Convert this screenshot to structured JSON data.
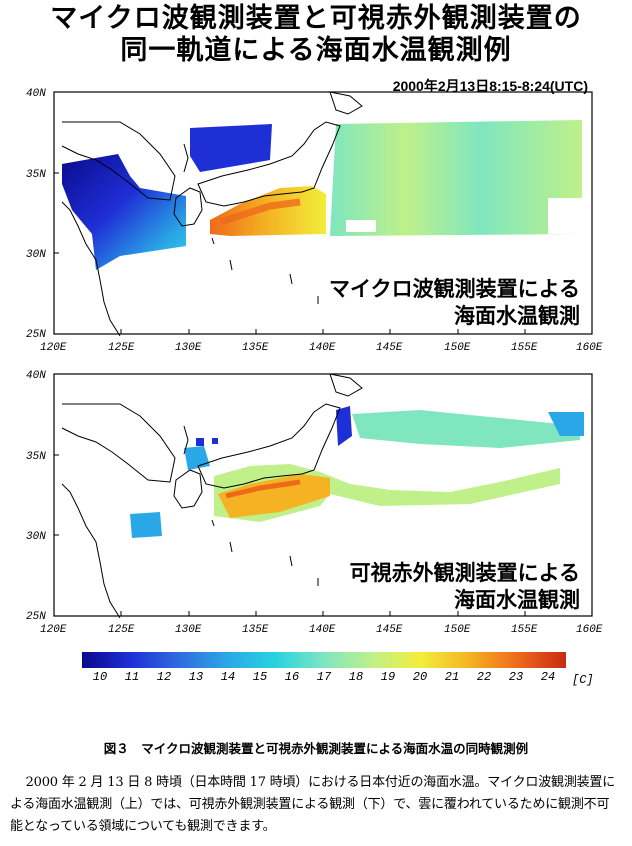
{
  "title_line1": "マイクロ波観測装置と可視赤外観測装置の",
  "title_line2": "同一軌道による海面水温観測例",
  "datetime": "2000年2月13日8:15-8:24(UTC)",
  "maps": {
    "lat_labels": [
      "40N",
      "35N",
      "30N",
      "25N"
    ],
    "lon_labels": [
      "120E",
      "125E",
      "130E",
      "135E",
      "140E",
      "145E",
      "150E",
      "155E",
      "160E"
    ],
    "top_label_line1": "マイクロ波観測装置による",
    "top_label_line2": "海面水温観測",
    "bottom_label_line1": "可視赤外観測装置による",
    "bottom_label_line2": "海面水温観測"
  },
  "colorbar": {
    "ticks": [
      "10",
      "11",
      "12",
      "13",
      "14",
      "15",
      "16",
      "17",
      "18",
      "19",
      "20",
      "21",
      "22",
      "23",
      "24"
    ],
    "unit": "[C]",
    "colors": [
      "#0a0a8c",
      "#1f2fd6",
      "#2f6be0",
      "#2aa7e6",
      "#27d3e0",
      "#7fe6c0",
      "#bff08a",
      "#f2ee3a",
      "#f5b324",
      "#ee6a1a",
      "#c82a14"
    ]
  },
  "caption": "図３　マイクロ波観測装置と可視赤外観測装置による海面水温の同時観測例",
  "paragraph": "2000 年 2 月 13 日 8 時頃（日本時間 17 時頃）における日本付近の海面水温。マイクロ波観測装置による海面水温観測（上）では、可視赤外観測装置による観測（下）で、雲に覆われているために観測不可能となっている領域についても観測できます。"
}
